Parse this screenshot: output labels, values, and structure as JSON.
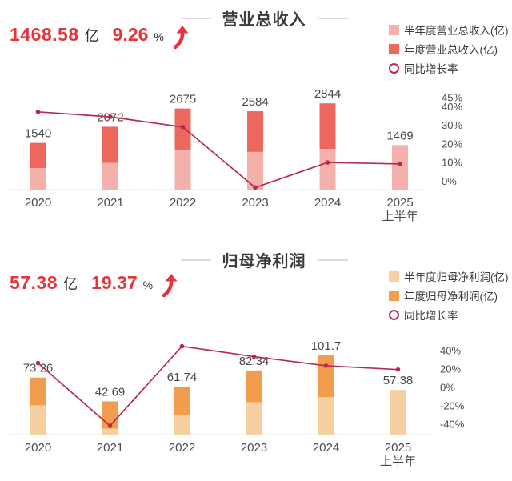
{
  "sections": [
    {
      "id": "revenue",
      "title": "营业总收入",
      "kpi": {
        "value": "1468.58",
        "unit": "亿",
        "pct": "9.26",
        "pct_unit": "%"
      },
      "legend": [
        {
          "label": "半年度营业总收入(亿)",
          "type": "square",
          "color": "#f4b1ab"
        },
        {
          "label": "年度营业总收入(亿)",
          "type": "square",
          "color": "#ec685e"
        },
        {
          "label": "同比增长率",
          "type": "ring",
          "color": "#b72a4e"
        }
      ],
      "chart_data": {
        "type": "bar",
        "subtype": "stacked-bar-with-line",
        "categories": [
          "2020",
          "2021",
          "2022",
          "2023",
          "2024",
          "2025"
        ],
        "x_sublabels": [
          null,
          null,
          null,
          null,
          null,
          "上半年"
        ],
        "series": [
          {
            "name": "半年度营业总收入(亿)",
            "role": "half_year",
            "color": "#f4b1ab",
            "values": [
              711.29,
              883.44,
              1300.64,
              1243.66,
              1344.48,
              1468.58
            ]
          },
          {
            "name": "年度营业总收入(亿)",
            "role": "annual_total",
            "color": "#ec685e",
            "values": [
              1539.87,
              2071.87,
              2674.9,
              2584.09,
              2844.2,
              null
            ]
          }
        ],
        "bar_labels": [
          "1540",
          "2072",
          "2675",
          "2584",
          "2844",
          "1469"
        ],
        "line": {
          "name": "同比增长率",
          "color": "#b72a4e",
          "values": [
            37.25,
            34.55,
            29.11,
            -3.39,
            10.07,
            9.26
          ]
        },
        "pct_axis": {
          "ticks": [
            "45%",
            "40%",
            "30%",
            "20%",
            "10%",
            "0%"
          ],
          "tick_values": [
            45,
            40,
            30,
            20,
            10,
            0
          ],
          "range": [
            -5,
            45
          ],
          "side": "right"
        },
        "legend_position": "top-right",
        "grid": false
      }
    },
    {
      "id": "net-profit",
      "title": "归母净利润",
      "kpi": {
        "value": "57.38",
        "unit": "亿",
        "pct": "19.37",
        "pct_unit": "%"
      },
      "legend": [
        {
          "label": "半年度归母净利润(亿)",
          "type": "square",
          "color": "#f7d0a2"
        },
        {
          "label": "年度归母净利润(亿)",
          "type": "square",
          "color": "#f19d4b"
        },
        {
          "label": "同比增长率",
          "type": "ring",
          "color": "#b72a4e"
        }
      ],
      "chart_data": {
        "type": "bar",
        "subtype": "stacked-bar-with-line",
        "categories": [
          "2020",
          "2021",
          "2022",
          "2023",
          "2024",
          "2025"
        ],
        "x_sublabels": [
          null,
          null,
          null,
          null,
          null,
          "上半年"
        ],
        "series": [
          {
            "name": "半年度归母净利润(亿)",
            "role": "half_year",
            "color": "#f7d0a2",
            "values": [
              37.62,
              7.6,
              25.12,
              41.76,
              48.07,
              57.38
            ]
          },
          {
            "name": "年度归母净利润(亿)",
            "role": "annual_total",
            "color": "#f19d4b",
            "values": [
              73.26,
              42.69,
              61.74,
              82.34,
              101.7,
              null
            ]
          }
        ],
        "bar_labels": [
          "73.26",
          "42.69",
          "61.74",
          "82.34",
          "101.7",
          "57.38"
        ],
        "line": {
          "name": "同比增长率",
          "color": "#b72a4e",
          "values": [
            26.39,
            -41.73,
            44.62,
            33.38,
            23.51,
            19.37
          ]
        },
        "pct_axis": {
          "ticks": [
            "40%",
            "20%",
            "0%",
            "-20%",
            "-40%"
          ],
          "tick_values": [
            40,
            20,
            0,
            -20,
            -40
          ],
          "range": [
            -50,
            45
          ],
          "side": "right"
        },
        "legend_position": "top-right",
        "grid": false
      }
    }
  ],
  "colors": {
    "kpi_red": "#e5333a",
    "line_crimson": "#b72a4e",
    "text_dark": "#3b3b3b",
    "label_gray": "#4a4a4a",
    "axis_line": "#e4e4e4"
  }
}
